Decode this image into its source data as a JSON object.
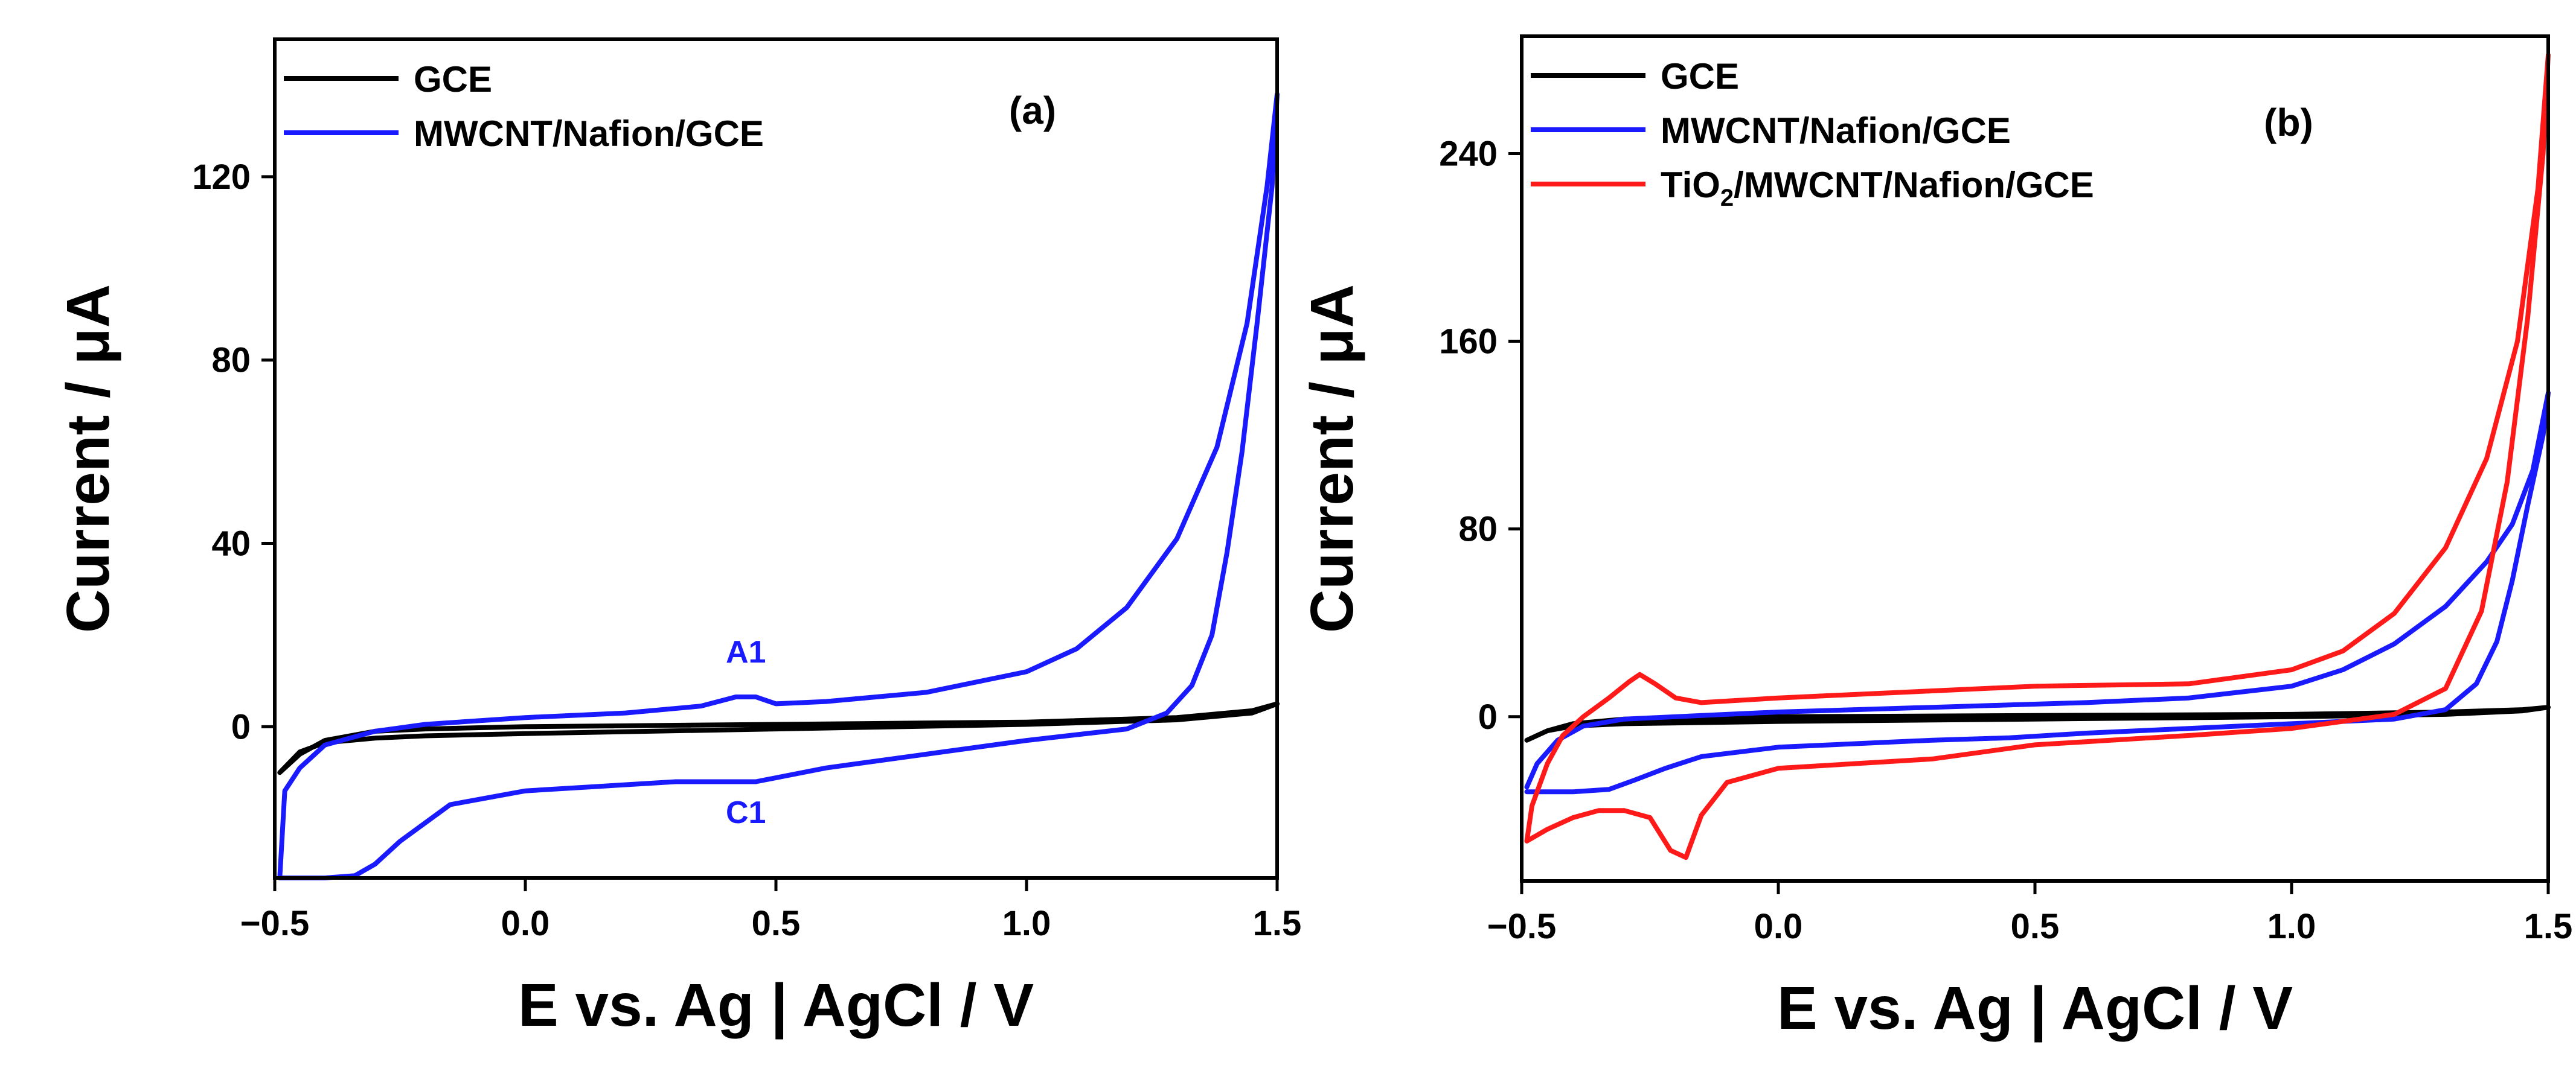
{
  "chart_data": [
    {
      "type": "line",
      "panel_label": "(a)",
      "xlabel": "E vs. Ag | AgCl / V",
      "ylabel": "Current / μA",
      "xlim": [
        -0.5,
        1.5
      ],
      "ylim": [
        -33,
        150
      ],
      "xticks": [
        -0.5,
        0.0,
        0.5,
        1.0,
        1.5
      ],
      "xtick_labels": [
        "−0.5",
        "0.0",
        "0.5",
        "1.0",
        "1.5"
      ],
      "yticks": [
        0,
        40,
        80,
        120
      ],
      "ytick_labels": [
        "0",
        "40",
        "80",
        "120"
      ],
      "legend": [
        "GCE",
        "MWCNT/Nafion/GCE"
      ],
      "legend_location": "top-left",
      "annotations": [
        {
          "text": "A1",
          "x": 0.44,
          "y": 14,
          "color": "#1a1aff"
        },
        {
          "text": "C1",
          "x": 0.44,
          "y": -21,
          "color": "#1a1aff"
        }
      ],
      "series": [
        {
          "name": "GCE",
          "color": "#000000",
          "points": [
            [
              -0.49,
              -10
            ],
            [
              -0.45,
              -6
            ],
            [
              -0.4,
              -3
            ],
            [
              -0.3,
              -1
            ],
            [
              -0.2,
              -0.5
            ],
            [
              0.0,
              0
            ],
            [
              0.5,
              0.5
            ],
            [
              1.0,
              1
            ],
            [
              1.3,
              2
            ],
            [
              1.45,
              3.5
            ],
            [
              1.5,
              5
            ],
            [
              1.45,
              3
            ],
            [
              1.3,
              1.5
            ],
            [
              1.0,
              0.5
            ],
            [
              0.5,
              -0.5
            ],
            [
              0.0,
              -1.5
            ],
            [
              -0.2,
              -2
            ],
            [
              -0.3,
              -2.5
            ],
            [
              -0.4,
              -3.5
            ],
            [
              -0.45,
              -5.5
            ],
            [
              -0.49,
              -10
            ]
          ]
        },
        {
          "name": "MWCNT/Nafion/GCE",
          "color": "#1a1aff",
          "points": [
            [
              -0.49,
              -33
            ],
            [
              -0.48,
              -14
            ],
            [
              -0.45,
              -9
            ],
            [
              -0.4,
              -4
            ],
            [
              -0.3,
              -1
            ],
            [
              -0.2,
              0.5
            ],
            [
              0.0,
              2
            ],
            [
              0.2,
              3
            ],
            [
              0.35,
              4.5
            ],
            [
              0.42,
              6.5
            ],
            [
              0.46,
              6.5
            ],
            [
              0.5,
              5
            ],
            [
              0.6,
              5.5
            ],
            [
              0.8,
              7.5
            ],
            [
              1.0,
              12
            ],
            [
              1.1,
              17
            ],
            [
              1.2,
              26
            ],
            [
              1.3,
              41
            ],
            [
              1.38,
              61
            ],
            [
              1.44,
              88
            ],
            [
              1.48,
              118
            ],
            [
              1.5,
              138
            ],
            [
              1.49,
              118
            ],
            [
              1.46,
              88
            ],
            [
              1.43,
              60
            ],
            [
              1.4,
              38
            ],
            [
              1.37,
              20
            ],
            [
              1.33,
              9
            ],
            [
              1.28,
              3
            ],
            [
              1.2,
              -0.5
            ],
            [
              1.0,
              -3
            ],
            [
              0.8,
              -6
            ],
            [
              0.6,
              -9
            ],
            [
              0.46,
              -12
            ],
            [
              0.42,
              -12
            ],
            [
              0.3,
              -12
            ],
            [
              0.0,
              -14
            ],
            [
              -0.15,
              -17
            ],
            [
              -0.25,
              -25
            ],
            [
              -0.3,
              -30
            ],
            [
              -0.34,
              -32.5
            ],
            [
              -0.4,
              -33
            ],
            [
              -0.49,
              -33
            ]
          ]
        }
      ]
    },
    {
      "type": "line",
      "panel_label": "(b)",
      "xlabel": "E vs. Ag | AgCl / V",
      "ylabel": "Current / μA",
      "xlim": [
        -0.5,
        1.5
      ],
      "ylim": [
        -70,
        290
      ],
      "xticks": [
        -0.5,
        0.0,
        0.5,
        1.0,
        1.5
      ],
      "xtick_labels": [
        "−0.5",
        "0.0",
        "0.5",
        "1.0",
        "1.5"
      ],
      "yticks": [
        0,
        80,
        160,
        240
      ],
      "ytick_labels": [
        "0",
        "80",
        "160",
        "240"
      ],
      "legend": [
        "GCE",
        "MWCNT/Nafion/GCE",
        "TiO2/MWCNT/Nafion/GCE"
      ],
      "legend_location": "top-left",
      "series": [
        {
          "name": "GCE",
          "color": "#000000",
          "points": [
            [
              -0.49,
              -10
            ],
            [
              -0.45,
              -6
            ],
            [
              -0.4,
              -3
            ],
            [
              -0.3,
              -1
            ],
            [
              0.0,
              0
            ],
            [
              0.5,
              0.5
            ],
            [
              1.0,
              1
            ],
            [
              1.3,
              2
            ],
            [
              1.45,
              3
            ],
            [
              1.5,
              4
            ],
            [
              1.45,
              2.5
            ],
            [
              1.3,
              1
            ],
            [
              1.0,
              0
            ],
            [
              0.5,
              -1
            ],
            [
              0.0,
              -2
            ],
            [
              -0.3,
              -3
            ],
            [
              -0.4,
              -4
            ],
            [
              -0.45,
              -6
            ],
            [
              -0.49,
              -10
            ]
          ]
        },
        {
          "name": "MWCNT/Nafion/GCE",
          "color": "#1a1aff",
          "points": [
            [
              -0.49,
              -30
            ],
            [
              -0.47,
              -20
            ],
            [
              -0.43,
              -10
            ],
            [
              -0.38,
              -4
            ],
            [
              -0.3,
              -1
            ],
            [
              0.0,
              2
            ],
            [
              0.3,
              4
            ],
            [
              0.45,
              5
            ],
            [
              0.6,
              6
            ],
            [
              0.8,
              8
            ],
            [
              1.0,
              13
            ],
            [
              1.1,
              20
            ],
            [
              1.2,
              31
            ],
            [
              1.3,
              47
            ],
            [
              1.38,
              66
            ],
            [
              1.43,
              82
            ],
            [
              1.47,
              105
            ],
            [
              1.5,
              138
            ],
            [
              1.49,
              120
            ],
            [
              1.46,
              90
            ],
            [
              1.43,
              58
            ],
            [
              1.4,
              32
            ],
            [
              1.36,
              14
            ],
            [
              1.3,
              3
            ],
            [
              1.2,
              -1
            ],
            [
              1.0,
              -3
            ],
            [
              0.8,
              -5
            ],
            [
              0.6,
              -7
            ],
            [
              0.45,
              -9
            ],
            [
              0.3,
              -10
            ],
            [
              0.0,
              -13
            ],
            [
              -0.15,
              -17
            ],
            [
              -0.22,
              -22
            ],
            [
              -0.28,
              -27
            ],
            [
              -0.33,
              -31
            ],
            [
              -0.4,
              -32
            ],
            [
              -0.49,
              -32
            ]
          ]
        },
        {
          "name": "TiO2/MWCNT/Nafion/GCE",
          "color": "#ff1a1a",
          "points": [
            [
              -0.49,
              -53
            ],
            [
              -0.48,
              -38
            ],
            [
              -0.45,
              -20
            ],
            [
              -0.42,
              -8
            ],
            [
              -0.38,
              0
            ],
            [
              -0.33,
              8
            ],
            [
              -0.29,
              15
            ],
            [
              -0.27,
              18
            ],
            [
              -0.24,
              14
            ],
            [
              -0.2,
              8
            ],
            [
              -0.15,
              6
            ],
            [
              0.0,
              8
            ],
            [
              0.3,
              11
            ],
            [
              0.5,
              13
            ],
            [
              0.8,
              14
            ],
            [
              1.0,
              20
            ],
            [
              1.1,
              28
            ],
            [
              1.2,
              44
            ],
            [
              1.3,
              72
            ],
            [
              1.38,
              110
            ],
            [
              1.44,
              160
            ],
            [
              1.48,
              225
            ],
            [
              1.5,
              282
            ],
            [
              1.49,
              240
            ],
            [
              1.46,
              170
            ],
            [
              1.42,
              100
            ],
            [
              1.37,
              45
            ],
            [
              1.3,
              12
            ],
            [
              1.2,
              1
            ],
            [
              1.0,
              -5
            ],
            [
              0.8,
              -8
            ],
            [
              0.5,
              -12
            ],
            [
              0.3,
              -18
            ],
            [
              0.0,
              -22
            ],
            [
              -0.1,
              -28
            ],
            [
              -0.15,
              -42
            ],
            [
              -0.18,
              -60
            ],
            [
              -0.21,
              -57
            ],
            [
              -0.25,
              -43
            ],
            [
              -0.3,
              -40
            ],
            [
              -0.35,
              -40
            ],
            [
              -0.4,
              -43
            ],
            [
              -0.45,
              -48
            ],
            [
              -0.49,
              -53
            ]
          ]
        }
      ]
    }
  ]
}
